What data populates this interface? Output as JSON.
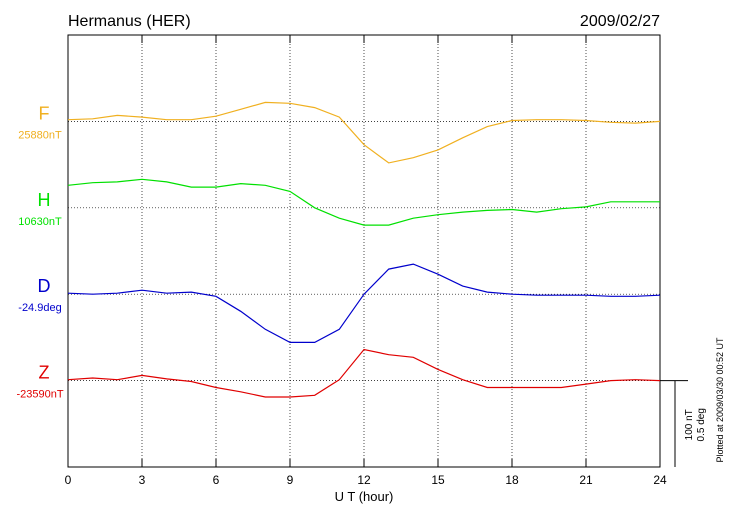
{
  "chart_data": {
    "type": "line",
    "title": "Hermanus (HER)",
    "date": "2009/02/27",
    "x_label": "U T (hour)",
    "note": "Plotted at 2009/03/30 00:52 UT",
    "xlim": [
      0,
      24
    ],
    "xticks": [
      0,
      3,
      6,
      9,
      12,
      15,
      18,
      21,
      24
    ],
    "grid": true,
    "scale_bar": [
      {
        "value": 100,
        "label": "100 nT"
      },
      {
        "value": 0.5,
        "label": "0.5 deg"
      }
    ],
    "x": [
      0,
      1,
      2,
      3,
      4,
      5,
      6,
      7,
      8,
      9,
      10,
      11,
      12,
      13,
      14,
      15,
      16,
      17,
      18,
      19,
      20,
      21,
      22,
      23,
      24
    ],
    "series": [
      {
        "name": "F",
        "color": "#f0b020",
        "baseline": {
          "value": 25880,
          "label": "25880nT"
        },
        "values": [
          25882,
          25883,
          25887,
          25885,
          25882,
          25882,
          25886,
          25894,
          25902,
          25901,
          25896,
          25885,
          25853,
          25832,
          25838,
          25847,
          25861,
          25874,
          25881,
          25882,
          25882,
          25881,
          25879,
          25878,
          25880
        ]
      },
      {
        "name": "H",
        "color": "#00e000",
        "baseline": {
          "value": 10630,
          "label": "10630nT"
        },
        "values": [
          10656,
          10659,
          10660,
          10663,
          10660,
          10654,
          10654,
          10658,
          10656,
          10649,
          10630,
          10618,
          10610,
          10610,
          10618,
          10622,
          10625,
          10627,
          10628,
          10625,
          10629,
          10631,
          10637,
          10637,
          10637
        ]
      },
      {
        "name": "D",
        "color": "#0000cc",
        "axis": "y2",
        "baseline": {
          "value": -24.9,
          "label": "-24.9deg"
        },
        "values": [
          -24.894,
          -24.9,
          -24.894,
          -24.877,
          -24.894,
          -24.888,
          -24.912,
          -24.999,
          -25.103,
          -25.179,
          -25.179,
          -25.103,
          -24.9,
          -24.755,
          -24.726,
          -24.784,
          -24.853,
          -24.888,
          -24.9,
          -24.906,
          -24.906,
          -24.906,
          -24.912,
          -24.912,
          -24.906
        ]
      },
      {
        "name": "Z",
        "color": "#e00000",
        "baseline": {
          "value": -23590,
          "label": "-23590nT"
        },
        "values": [
          -23589,
          -23587,
          -23589,
          -23584,
          -23588,
          -23591,
          -23598,
          -23603,
          -23609,
          -23609,
          -23607,
          -23589,
          -23554,
          -23560,
          -23563,
          -23577,
          -23589,
          -23598,
          -23598,
          -23598,
          -23598,
          -23594,
          -23590,
          -23589,
          -23590
        ]
      }
    ]
  }
}
